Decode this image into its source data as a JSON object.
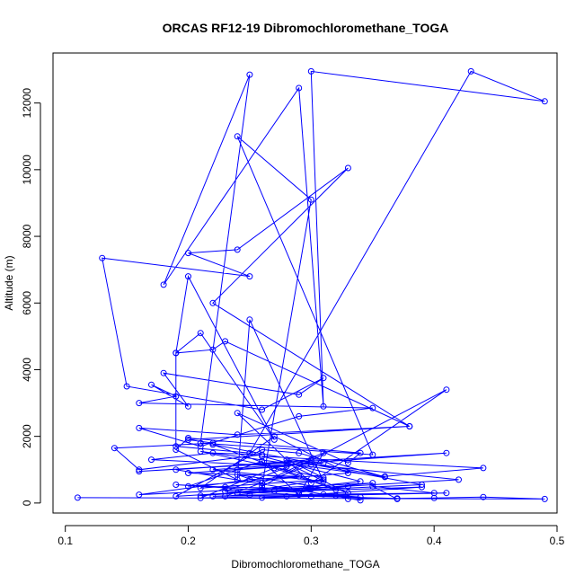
{
  "chart_data": {
    "type": "line",
    "title": "ORCAS RF12-19 Dibromochloromethane_TOGA",
    "xlabel": "Dibromochloromethane_TOGA",
    "ylabel": "Altitude (m)",
    "xlim": [
      0.09,
      0.5
    ],
    "ylim": [
      -300,
      13500
    ],
    "x_ticks": [
      0.1,
      0.2,
      0.3,
      0.4,
      0.5
    ],
    "x_tick_labels": [
      "0.1",
      "0.2",
      "0.3",
      "0.4",
      "0.5"
    ],
    "y_ticks": [
      0,
      2000,
      4000,
      6000,
      8000,
      10000,
      12000
    ],
    "y_tick_labels": [
      "0",
      "2000",
      "4000",
      "6000",
      "8000",
      "10000",
      "12000"
    ],
    "grid": false,
    "legend": "none",
    "color": "#0000ff",
    "series": [
      {
        "x": [
          0.11,
          0.49,
          0.44,
          0.4,
          0.33,
          0.37,
          0.3,
          0.26,
          0.32,
          0.34,
          0.31,
          0.22,
          0.25,
          0.41,
          0.28,
          0.39,
          0.24,
          0.21,
          0.26,
          0.33,
          0.29,
          0.27,
          0.19,
          0.23,
          0.3,
          0.35,
          0.16,
          0.25,
          0.29,
          0.2,
          0.31,
          0.24,
          0.28,
          0.17,
          0.22,
          0.26,
          0.16,
          0.14,
          0.22,
          0.2,
          0.38,
          0.24,
          0.16,
          0.21,
          0.29,
          0.35,
          0.16,
          0.19,
          0.17,
          0.2,
          0.18,
          0.29,
          0.31,
          0.26,
          0.15,
          0.13,
          0.25,
          0.2,
          0.24,
          0.33,
          0.22,
          0.38,
          0.23,
          0.22,
          0.19,
          0.2,
          0.27,
          0.21,
          0.19,
          0.19,
          0.25,
          0.43,
          0.49,
          0.3,
          0.31,
          0.29,
          0.18,
          0.25,
          0.21,
          0.35,
          0.24,
          0.3,
          0.26,
          0.41,
          0.3,
          0.24,
          0.33,
          0.34,
          0.2,
          0.19,
          0.24,
          0.25,
          0.31,
          0.22,
          0.41,
          0.16,
          0.28,
          0.33,
          0.22,
          0.36,
          0.44,
          0.26,
          0.34,
          0.23,
          0.3,
          0.42,
          0.19,
          0.26,
          0.29,
          0.36,
          0.21,
          0.31,
          0.28,
          0.39,
          0.24,
          0.31,
          0.21,
          0.27,
          0.33,
          0.2,
          0.26,
          0.29,
          0.31,
          0.23,
          0.37,
          0.35,
          0.4,
          0.21,
          0.27,
          0.32,
          0.24,
          0.26,
          0.3,
          0.19,
          0.34
        ],
        "y": [
          160,
          120,
          180,
          150,
          120,
          140,
          200,
          160,
          220,
          180,
          260,
          200,
          240,
          300,
          200,
          480,
          300,
          220,
          400,
          500,
          320,
          360,
          550,
          480,
          420,
          600,
          250,
          700,
          800,
          900,
          1200,
          1000,
          1100,
          1300,
          1500,
          1450,
          1000,
          1650,
          1800,
          1900,
          2300,
          2050,
          2250,
          1700,
          2600,
          2850,
          3000,
          3200,
          3550,
          2900,
          3900,
          3250,
          3750,
          2800,
          3500,
          7350,
          6800,
          7500,
          7600,
          10050,
          6000,
          2300,
          4850,
          4600,
          4500,
          6800,
          1900,
          5100,
          4500,
          1700,
          1500,
          12950,
          12050,
          12950,
          2900,
          12450,
          6550,
          12850,
          1800,
          1450,
          11000,
          9100,
          500,
          3400,
          600,
          2700,
          1200,
          1500,
          1950,
          1600,
          700,
          5500,
          650,
          1000,
          1500,
          950,
          1200,
          300,
          1750,
          800,
          1050,
          1400,
          650,
          200,
          1150,
          700,
          200,
          1600,
          1500,
          780,
          1550,
          760,
          1300,
          550,
          300,
          700,
          450,
          2000,
          900,
          500,
          1250,
          250,
          1500,
          350,
          120,
          500,
          300,
          150,
          1050,
          400,
          850,
          600,
          1300,
          1000,
          80
        ]
      }
    ]
  }
}
